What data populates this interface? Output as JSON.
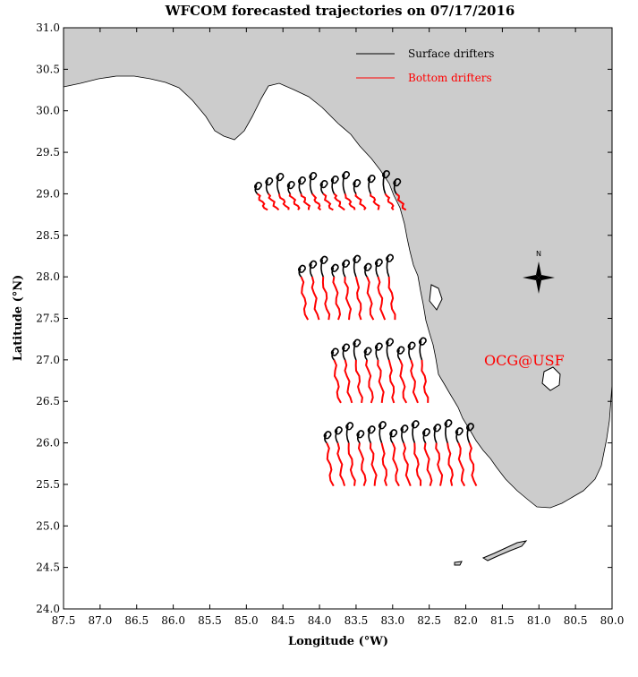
{
  "title": "WFCOM forecasted trajectories on 07/17/2016",
  "xlabel": "Longitude (°W)",
  "ylabel": "Latitude (°N)",
  "credit": "OCG@USF",
  "compass_label": "N",
  "colors": {
    "land": "#cccccc",
    "coast": "#000000",
    "surface": "#000000",
    "bottom": "#ff0000",
    "credit": "#ff0000"
  },
  "legend": {
    "placement": "top-right",
    "surface_label": "Surface drifters",
    "bottom_label": "Bottom drifters"
  },
  "chart_data": {
    "type": "map",
    "xlim": [
      87.5,
      80.0
    ],
    "ylim": [
      24.0,
      31.0
    ],
    "x_ticks": [
      "87.5",
      "87.0",
      "86.5",
      "86.0",
      "85.5",
      "85.0",
      "84.5",
      "84.0",
      "83.5",
      "83.0",
      "82.5",
      "82.0",
      "81.5",
      "81.0",
      "80.5",
      "80.0"
    ],
    "y_ticks": [
      "24.0",
      "24.5",
      "25.0",
      "25.5",
      "26.0",
      "26.5",
      "27.0",
      "27.5",
      "28.0",
      "28.5",
      "29.0",
      "29.5",
      "30.0",
      "30.5",
      "31.0"
    ],
    "release_lines": [
      {
        "lat": 29.0,
        "lons": [
          84.85,
          84.7,
          84.55,
          84.4,
          84.25,
          84.1,
          83.95,
          83.8,
          83.65,
          83.5,
          83.3,
          83.1,
          82.95
        ]
      },
      {
        "lat": 28.0,
        "lons": [
          84.25,
          84.1,
          83.95,
          83.8,
          83.65,
          83.5,
          83.35,
          83.2,
          83.05
        ]
      },
      {
        "lat": 27.0,
        "lons": [
          83.8,
          83.65,
          83.5,
          83.35,
          83.2,
          83.05,
          82.9,
          82.75,
          82.6
        ]
      },
      {
        "lat": 26.0,
        "lons": [
          83.9,
          83.75,
          83.6,
          83.45,
          83.3,
          83.15,
          83.0,
          82.85,
          82.7,
          82.55,
          82.4,
          82.25,
          82.1,
          81.95
        ]
      }
    ]
  }
}
